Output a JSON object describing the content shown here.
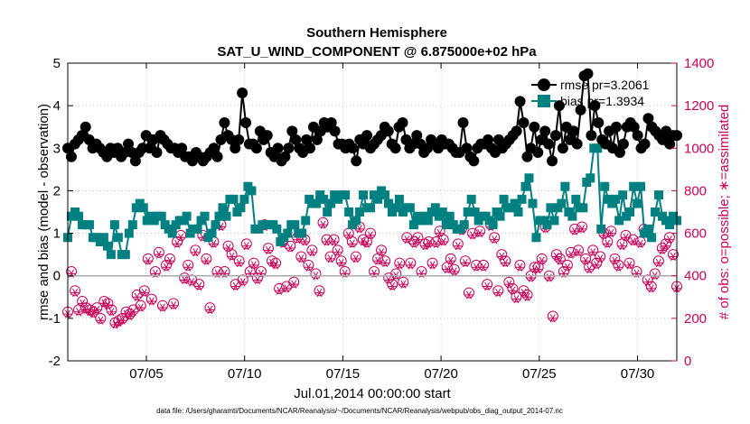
{
  "chart_data": {
    "type": "line",
    "title": "Southern Hemisphere",
    "subtitle": "SAT_U_WIND_COMPONENT @ 6.875000e+02 hPa",
    "xlabel": "Jul.01,2014 00:00:00 start",
    "ylabel": "rmse and bias (model - observation)",
    "y2label": "# of obs: o=possible; ∗=assimilated",
    "footnote": "data file: /Users/gharamti/Documents/NCAR/Reanalysis/~/Documents/NCAR/Reanalysis/webpub/obs_diag_output_2014-07.nc",
    "x_start_day": 1,
    "xlim": [
      1,
      32
    ],
    "xticks": [
      5,
      10,
      15,
      20,
      25,
      30
    ],
    "xtick_labels": [
      "07/05",
      "07/10",
      "07/15",
      "07/20",
      "07/25",
      "07/30"
    ],
    "ylim": [
      -2,
      5
    ],
    "yticks": [
      -2,
      -1,
      0,
      1,
      2,
      3,
      4,
      5
    ],
    "ytick_labels": [
      "-2",
      "-1",
      "0",
      "1",
      "2",
      "3",
      "4",
      "5"
    ],
    "y2lim": [
      0,
      1400
    ],
    "y2ticks": [
      0,
      200,
      400,
      600,
      800,
      1000,
      1200,
      1400
    ],
    "y2tick_labels": [
      "0",
      "200",
      "400",
      "600",
      "800",
      "1000",
      "1200",
      "1400"
    ],
    "colors": {
      "rmse": "#000000",
      "bias": "#008080",
      "obs": "#c8005a",
      "zero_line": "#aaaaaa",
      "grid": "#bbbbbb"
    },
    "series": [
      {
        "name": "rmse",
        "legend": "rmse pr=3.2061",
        "values": [
          3.0,
          2.8,
          3.1,
          3.2,
          3.3,
          3.5,
          3.2,
          3.0,
          3.1,
          3.0,
          2.9,
          2.8,
          3.0,
          2.9,
          3.0,
          2.8,
          2.9,
          3.1,
          2.9,
          2.7,
          2.9,
          3.0,
          3.3,
          3.0,
          3.2,
          2.9,
          3.3,
          3.2,
          3.1,
          3.0,
          3.0,
          2.9,
          3.0,
          2.8,
          2.8,
          2.7,
          2.9,
          2.8,
          2.7,
          2.8,
          2.9,
          3.0,
          2.8,
          3.2,
          3.6,
          3.3,
          3.2,
          3.0,
          3.2,
          4.3,
          3.6,
          3.1,
          3.1,
          3.0,
          3.4,
          3.2,
          3.3,
          2.9,
          2.8,
          3.0,
          2.7,
          2.8,
          3.0,
          3.4,
          3.2,
          3.0,
          2.9,
          3.2,
          3.0,
          3.5,
          3.2,
          3.4,
          3.6,
          3.5,
          3.6,
          3.4,
          3.1,
          3.1,
          3.0,
          3.1,
          3.0,
          2.7,
          3.2,
          3.1,
          3.3,
          3.0,
          3.1,
          3.2,
          3.3,
          3.5,
          3.4,
          3.1,
          3.0,
          3.5,
          3.6,
          3.2,
          3.0,
          3.1,
          3.3,
          3.1,
          2.9,
          3.0,
          3.2,
          3.1,
          3.0,
          3.2,
          3.1,
          3.1,
          3.0,
          2.9,
          2.9,
          3.6,
          3.0,
          2.8,
          2.7,
          3.0,
          3.1,
          3.1,
          3.2,
          3.0,
          2.9,
          3.2,
          3.0,
          3.1,
          3.2,
          3.3,
          3.4,
          4.1,
          3.6,
          2.8,
          3.0,
          3.5,
          2.9,
          3.2,
          3.4,
          3.1,
          2.7,
          3.3,
          4.0,
          3.0,
          3.5,
          3.2,
          3.4,
          3.1,
          3.9,
          4.7,
          4.75,
          3.3,
          4.0,
          3.6,
          3.2,
          3.1,
          3.4,
          3.0,
          3.5,
          2.9,
          3.1,
          3.5,
          3.6,
          3.5,
          3.3,
          3.0,
          3.1,
          3.7,
          3.5,
          3.4,
          3.3,
          3.2,
          3.4,
          3.1,
          3.3,
          3.3
        ]
      },
      {
        "name": "bias",
        "legend": "bias pr=1.3934",
        "values": [
          0.9,
          1.4,
          1.5,
          1.4,
          1.2,
          1.2,
          1.2,
          0.9,
          0.9,
          0.8,
          0.9,
          0.7,
          0.5,
          1.2,
          0.9,
          0.5,
          0.5,
          1.0,
          1.2,
          1.6,
          1.7,
          1.6,
          1.3,
          1.4,
          1.3,
          1.4,
          1.4,
          1.2,
          1.1,
          1.0,
          1.2,
          1.3,
          1.3,
          1.4,
          1.0,
          1.1,
          1.1,
          1.3,
          1.4,
          0.9,
          1.0,
          1.2,
          1.4,
          1.6,
          1.4,
          1.8,
          1.8,
          1.5,
          1.6,
          1.8,
          2.1,
          2.0,
          1.1,
          1.1,
          1.2,
          1.2,
          1.2,
          1.2,
          1.1,
          0.8,
          0.9,
          1.0,
          1.2,
          1.2,
          1.0,
          1.0,
          1.3,
          1.8,
          1.7,
          1.7,
          1.9,
          1.8,
          1.5,
          1.7,
          1.9,
          1.8,
          1.9,
          1.9,
          1.5,
          1.2,
          1.3,
          1.5,
          1.9,
          1.6,
          1.6,
          1.9,
          1.8,
          2.0,
          1.9,
          1.7,
          1.5,
          1.6,
          1.8,
          1.5,
          1.6,
          1.6,
          1.2,
          1.4,
          1.3,
          1.4,
          1.3,
          1.5,
          1.6,
          1.4,
          1.5,
          1.2,
          1.4,
          1.2,
          1.1,
          1.1,
          1.2,
          1.5,
          1.8,
          1.5,
          1.3,
          1.4,
          1.4,
          1.3,
          1.2,
          1.5,
          1.4,
          1.8,
          1.6,
          1.6,
          1.7,
          1.5,
          1.8,
          2.1,
          2.3,
          1.7,
          0.9,
          1.3,
          1.3,
          1.2,
          1.6,
          1.3,
          1.6,
          1.7,
          2.1,
          1.5,
          1.4,
          1.8,
          1.6,
          1.6,
          2.2,
          2.3,
          3.0,
          3.0,
          1.1,
          2.1,
          1.8,
          1.7,
          1.8,
          1.3,
          1.9,
          1.4,
          1.5,
          2.1,
          1.7,
          2.1,
          1.0,
          1.1,
          0.9,
          1.5,
          1.9,
          1.4,
          1.3,
          1.2,
          1.4,
          1.3
        ]
      },
      {
        "name": "obs_possible",
        "axis": "right",
        "marker": "o",
        "values": [
          230,
          420,
          330,
          240,
          280,
          250,
          240,
          230,
          250,
          200,
          280,
          270,
          240,
          180,
          190,
          200,
          230,
          220,
          240,
          310,
          260,
          330,
          480,
          290,
          420,
          510,
          260,
          450,
          480,
          270,
          560,
          590,
          390,
          450,
          380,
          520,
          360,
          590,
          480,
          250,
          560,
          420,
          640,
          420,
          540,
          500,
          360,
          470,
          380,
          550,
          420,
          460,
          390,
          420,
          640,
          530,
          470,
          460,
          340,
          560,
          350,
          540,
          370,
          580,
          490,
          570,
          450,
          520,
          410,
          330,
          650,
          570,
          490,
          570,
          520,
          470,
          420,
          600,
          560,
          490,
          630,
          570,
          560,
          600,
          420,
          480,
          520,
          470,
          390,
          360,
          410,
          460,
          370,
          580,
          460,
          560,
          580,
          420,
          550,
          560,
          460,
          560,
          610,
          570,
          440,
          480,
          430,
          550,
          620,
          470,
          320,
          600,
          450,
          610,
          450,
          360,
          640,
          580,
          330,
          500,
          470,
          370,
          340,
          300,
          450,
          330,
          310,
          400,
          440,
          440,
          480,
          630,
          400,
          210,
          500,
          480,
          420,
          450,
          510,
          620,
          520,
          630,
          480,
          440,
          520,
          460,
          490,
          600,
          560,
          610,
          480,
          450,
          550,
          590,
          460,
          570,
          420,
          560,
          620,
          380,
          350,
          410,
          470,
          530,
          550,
          580,
          500,
          350
        ]
      },
      {
        "name": "obs_assimilated",
        "axis": "right",
        "marker": "*",
        "values": [
          220,
          410,
          320,
          230,
          270,
          240,
          230,
          220,
          240,
          190,
          270,
          260,
          230,
          170,
          180,
          190,
          220,
          210,
          230,
          300,
          250,
          320,
          470,
          280,
          410,
          500,
          250,
          440,
          470,
          260,
          550,
          580,
          380,
          440,
          370,
          510,
          350,
          580,
          470,
          240,
          550,
          410,
          630,
          410,
          530,
          490,
          350,
          460,
          370,
          540,
          410,
          450,
          380,
          410,
          630,
          520,
          460,
          450,
          330,
          550,
          340,
          530,
          360,
          570,
          480,
          560,
          440,
          510,
          400,
          320,
          640,
          560,
          480,
          560,
          510,
          460,
          410,
          590,
          550,
          480,
          620,
          560,
          550,
          590,
          410,
          470,
          510,
          460,
          380,
          350,
          400,
          450,
          360,
          570,
          450,
          550,
          570,
          410,
          540,
          550,
          450,
          550,
          600,
          560,
          430,
          470,
          420,
          540,
          610,
          460,
          310,
          590,
          440,
          600,
          440,
          350,
          630,
          570,
          320,
          490,
          460,
          360,
          330,
          290,
          440,
          320,
          300,
          390,
          430,
          430,
          470,
          620,
          390,
          200,
          490,
          470,
          410,
          440,
          500,
          610,
          510,
          620,
          470,
          430,
          510,
          450,
          480,
          590,
          550,
          600,
          470,
          440,
          540,
          580,
          450,
          560,
          410,
          550,
          610,
          370,
          340,
          400,
          460,
          520,
          540,
          570,
          490,
          340
        ]
      }
    ]
  }
}
